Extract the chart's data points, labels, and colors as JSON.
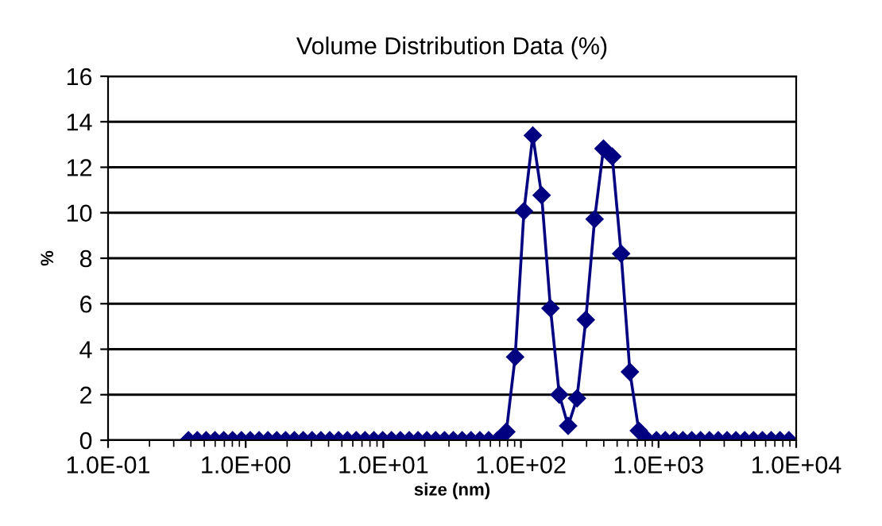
{
  "chart_data": {
    "type": "line",
    "title": "Volume Distribution Data (%)",
    "xlabel": "size (nm)",
    "ylabel": "%",
    "x": [
      0.384,
      0.445,
      0.516,
      0.598,
      0.693,
      0.803,
      0.931,
      1.079,
      1.251,
      1.45,
      1.681,
      1.949,
      2.259,
      2.619,
      3.036,
      3.519,
      4.079,
      4.729,
      5.482,
      6.354,
      7.366,
      8.539,
      9.898,
      11.47,
      13.3,
      15.42,
      17.87,
      20.72,
      24.02,
      27.84,
      32.27,
      37.41,
      43.37,
      50.27,
      58.28,
      67.55,
      78.31,
      90.78,
      105.2,
      122.0,
      141.4,
      163.9,
      190.0,
      220.3,
      255.3,
      296.0,
      343.1,
      397.7,
      461.1,
      534.5,
      619.5,
      718.2,
      832.5,
      965.0,
      1119,
      1297,
      1503,
      1743,
      2020,
      2342,
      2714,
      3146,
      3648,
      4228,
      4901,
      5681,
      6586,
      7634,
      8849
    ],
    "series": [
      {
        "color": "#000080",
        "values": [
          0,
          0,
          0,
          0,
          0,
          0,
          0,
          0,
          0,
          0,
          0,
          0,
          0,
          0,
          0,
          0,
          0,
          0,
          0,
          0,
          0,
          0,
          0,
          0,
          0,
          0,
          0,
          0,
          0,
          0,
          0,
          0,
          0,
          0,
          0,
          0,
          0.37,
          3.66,
          10.07,
          13.4,
          10.77,
          5.8,
          2.0,
          0.63,
          1.84,
          5.29,
          9.72,
          12.82,
          12.47,
          8.2,
          3.0,
          0.42,
          0,
          0,
          0,
          0,
          0,
          0,
          0,
          0,
          0,
          0,
          0,
          0,
          0,
          0,
          0,
          0,
          0
        ]
      }
    ],
    "log": "x",
    "xlim": [
      0.1,
      10000
    ],
    "xticks": [
      {
        "value": 0.1,
        "label": "1.0E-01"
      },
      {
        "value": 1,
        "label": "1.0E+00"
      },
      {
        "value": 10,
        "label": "1.0E+01"
      },
      {
        "value": 100,
        "label": "1.0E+02"
      },
      {
        "value": 1000,
        "label": "1.0E+03"
      },
      {
        "value": 10000,
        "label": "1.0E+04"
      }
    ],
    "ylim": [
      0,
      16
    ],
    "yticks": [
      0,
      2,
      4,
      6,
      8,
      10,
      12,
      14,
      16
    ],
    "grid": "y",
    "legend": false,
    "marker": "diamond",
    "line_style": "solid"
  }
}
